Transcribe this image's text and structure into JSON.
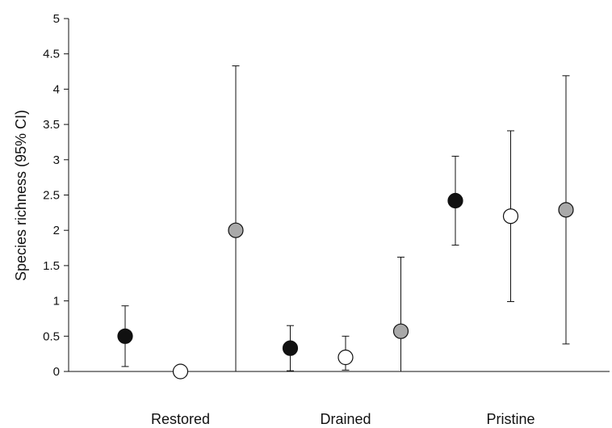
{
  "chart_data": {
    "type": "scatter",
    "title": "",
    "xlabel": "",
    "ylabel": "Species richness (95% CI)",
    "ylim": [
      0,
      5
    ],
    "yticks": [
      0,
      0.5,
      1,
      1.5,
      2,
      2.5,
      3,
      3.5,
      4,
      4.5,
      5
    ],
    "grid": false,
    "categories": [
      "Restored",
      "Drained",
      "Pristine"
    ],
    "series_fills": [
      "#111111",
      "#ffffff",
      "#a9a9a9"
    ],
    "points": [
      {
        "category": "Restored",
        "series": 0,
        "value": 0.5,
        "lower": 0.07,
        "upper": 0.93
      },
      {
        "category": "Restored",
        "series": 1,
        "value": 0.0,
        "lower": 0.0,
        "upper": 0.0
      },
      {
        "category": "Restored",
        "series": 2,
        "value": 2.0,
        "lower": 0.0,
        "upper": 4.33
      },
      {
        "category": "Drained",
        "series": 0,
        "value": 0.33,
        "lower": 0.01,
        "upper": 0.65
      },
      {
        "category": "Drained",
        "series": 1,
        "value": 0.2,
        "lower": 0.02,
        "upper": 0.5
      },
      {
        "category": "Drained",
        "series": 2,
        "value": 0.57,
        "lower": 0.0,
        "upper": 1.62
      },
      {
        "category": "Pristine",
        "series": 0,
        "value": 2.42,
        "lower": 1.79,
        "upper": 3.05
      },
      {
        "category": "Pristine",
        "series": 1,
        "value": 2.2,
        "lower": 0.99,
        "upper": 3.41
      },
      {
        "category": "Pristine",
        "series": 2,
        "value": 2.29,
        "lower": 0.39,
        "upper": 4.19
      }
    ]
  }
}
